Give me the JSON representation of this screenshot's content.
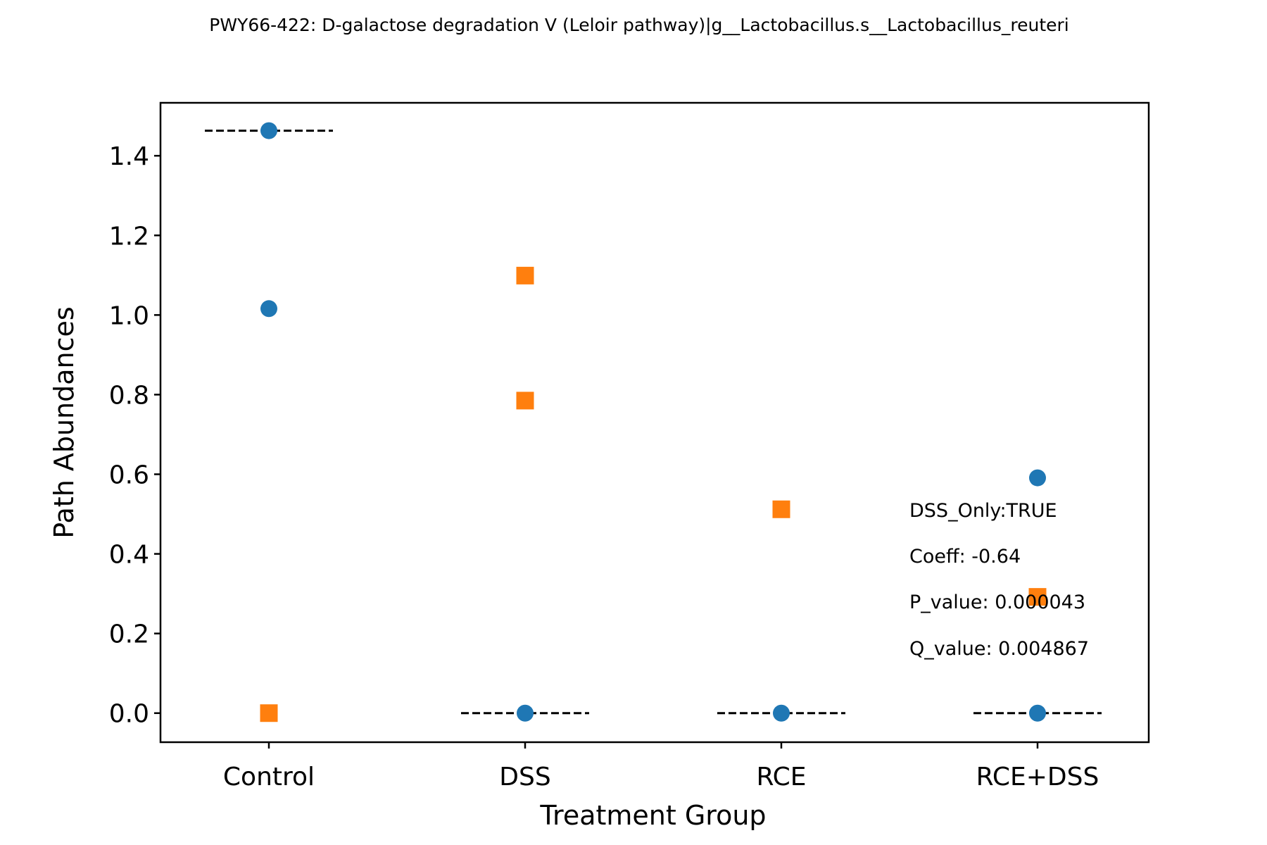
{
  "chart_data": {
    "type": "scatter",
    "title": "PWY66-422: D-galactose degradation V (Leloir pathway)|g__Lactobacillus.s__Lactobacillus_reuteri",
    "xlabel": "Treatment Group",
    "ylabel": "Path Abundances",
    "categories": [
      "Control",
      "DSS",
      "RCE",
      "RCE+DSS"
    ],
    "ylim": [
      -0.073,
      1.533
    ],
    "yticks": [
      0.0,
      0.2,
      0.4,
      0.6,
      0.8,
      1.0,
      1.2,
      1.4
    ],
    "ytick_labels": [
      "0.0",
      "0.2",
      "0.4",
      "0.6",
      "0.8",
      "1.0",
      "1.2",
      "1.4"
    ],
    "grid": false,
    "colors": {
      "circle": "#1f77b4",
      "square": "#ff7f0e",
      "median_line": "#000000"
    },
    "series": [
      {
        "marker": "circle",
        "points": [
          {
            "category": "Control",
            "y": 1.463
          },
          {
            "category": "Control",
            "y": 1.016
          },
          {
            "category": "DSS",
            "y": 0.0
          },
          {
            "category": "RCE",
            "y": 0.0
          },
          {
            "category": "RCE+DSS",
            "y": 0.591
          },
          {
            "category": "RCE+DSS",
            "y": 0.0
          }
        ]
      },
      {
        "marker": "square",
        "points": [
          {
            "category": "Control",
            "y": 0.0
          },
          {
            "category": "DSS",
            "y": 1.099
          },
          {
            "category": "DSS",
            "y": 0.785
          },
          {
            "category": "RCE",
            "y": 0.512
          },
          {
            "category": "RCE+DSS",
            "y": 0.292
          }
        ]
      }
    ],
    "median_lines": [
      {
        "category": "Control",
        "y": 1.463
      },
      {
        "category": "DSS",
        "y": 0.0
      },
      {
        "category": "RCE",
        "y": 0.0
      },
      {
        "category": "RCE+DSS",
        "y": 0.0
      }
    ],
    "annotations": [
      "DSS_Only:TRUE",
      "Coeff: -0.64",
      "P_value: 0.000043",
      "Q_value: 0.004867"
    ]
  }
}
